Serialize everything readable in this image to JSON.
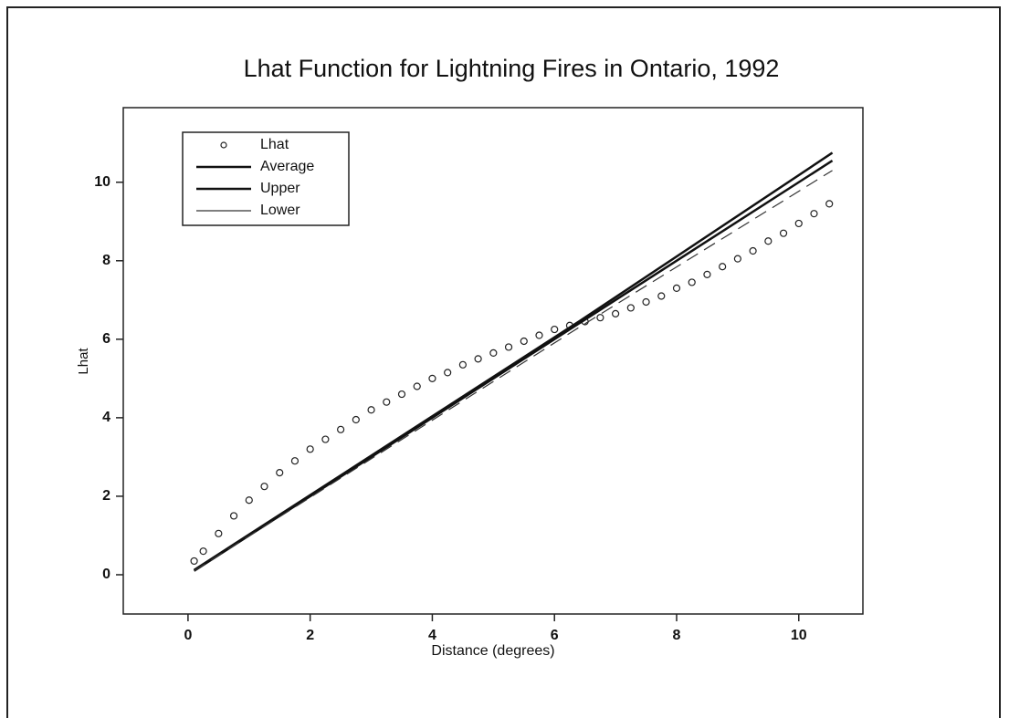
{
  "chart_data": {
    "type": "scatter_line",
    "title": "Lhat Function for Lightning Fires in Ontario, 1992",
    "xlabel": "Distance (degrees)",
    "ylabel": "Lhat",
    "xlim": [
      -1.06,
      11.05
    ],
    "ylim": [
      -1,
      11.9
    ],
    "xticks": [
      0,
      2,
      4,
      6,
      8,
      10
    ],
    "yticks": [
      0,
      2,
      4,
      6,
      8,
      10
    ],
    "legend": "upper left",
    "series": [
      {
        "name": "Lhat",
        "kind": "points",
        "color": "#222222",
        "x": [
          0.1,
          0.25,
          0.5,
          0.75,
          1.0,
          1.25,
          1.5,
          1.75,
          2.0,
          2.25,
          2.5,
          2.75,
          3.0,
          3.25,
          3.5,
          3.75,
          4.0,
          4.25,
          4.5,
          4.75,
          5.0,
          5.25,
          5.5,
          5.75,
          6.0,
          6.25,
          6.5,
          6.75,
          7.0,
          7.25,
          7.5,
          7.75,
          8.0,
          8.25,
          8.5,
          8.75,
          9.0,
          9.25,
          9.5,
          9.75,
          10.0,
          10.25,
          10.5
        ],
        "values": [
          0.35,
          0.6,
          1.05,
          1.5,
          1.9,
          2.25,
          2.6,
          2.9,
          3.2,
          3.45,
          3.7,
          3.95,
          4.2,
          4.4,
          4.6,
          4.8,
          5.0,
          5.15,
          5.35,
          5.5,
          5.65,
          5.8,
          5.95,
          6.1,
          6.25,
          6.35,
          6.45,
          6.55,
          6.65,
          6.8,
          6.95,
          7.1,
          7.3,
          7.45,
          7.65,
          7.85,
          8.05,
          8.25,
          8.5,
          8.7,
          8.95,
          9.2,
          9.45
        ]
      },
      {
        "name": "Average",
        "kind": "line",
        "color": "#111111",
        "width": 2.5,
        "x": [
          0.1,
          6.4,
          10.55
        ],
        "values": [
          0.1,
          6.4,
          10.55
        ]
      },
      {
        "name": "Upper",
        "kind": "line",
        "color": "#111111",
        "width": 2.5,
        "x": [
          0.1,
          6.4,
          10.55
        ],
        "values": [
          0.12,
          6.45,
          10.75
        ]
      },
      {
        "name": "Lower",
        "kind": "line",
        "color": "#333333",
        "width": 1.2,
        "dashed": true,
        "x": [
          0.1,
          6.4,
          10.55
        ],
        "values": [
          0.1,
          6.3,
          10.3
        ]
      }
    ]
  }
}
